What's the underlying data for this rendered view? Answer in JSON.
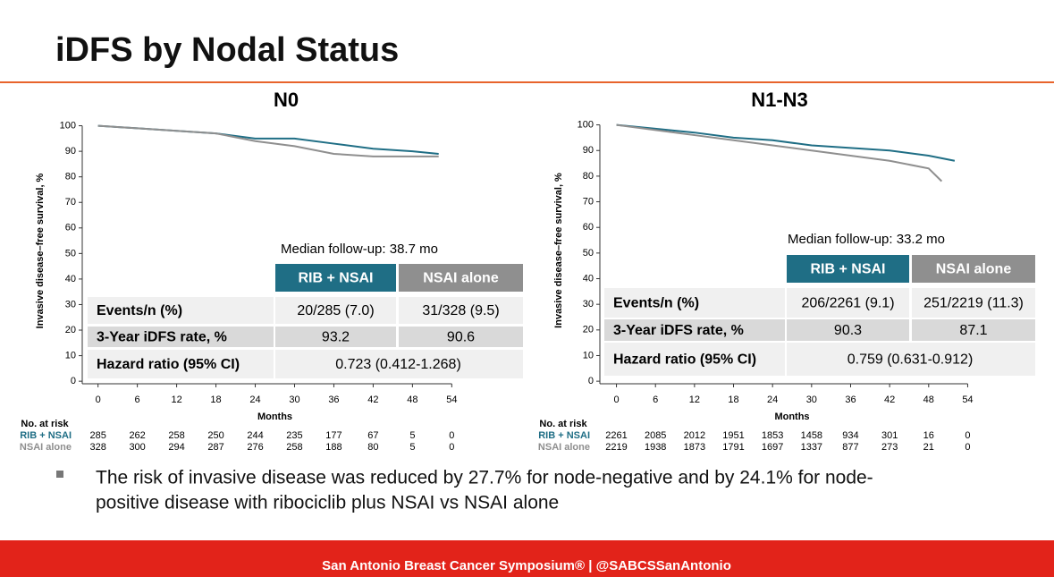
{
  "header": {
    "title": "iDFS by Nodal Status"
  },
  "chart_data": [
    {
      "type": "line",
      "title": "N0",
      "y_label": "Invasive disease–free survival, %",
      "x_label": "Months",
      "x": [
        0,
        6,
        12,
        18,
        24,
        30,
        36,
        42,
        48,
        52
      ],
      "xlim": [
        -2,
        56
      ],
      "xticks": [
        0,
        6,
        12,
        18,
        24,
        30,
        36,
        42,
        48,
        54
      ],
      "ylim": [
        -1,
        103
      ],
      "yticks": [
        0,
        10,
        20,
        30,
        40,
        50,
        60,
        70,
        80,
        90,
        100
      ],
      "series": [
        {
          "name": "RIB + NSAI",
          "color": "#1f6e85",
          "values": [
            100,
            99,
            98,
            97,
            95,
            95,
            93,
            91,
            90,
            89
          ]
        },
        {
          "name": "NSAI alone",
          "color": "#8f8f8f",
          "values": [
            100,
            99,
            98,
            97,
            94,
            92,
            89,
            88,
            88,
            88
          ]
        }
      ],
      "risk_table": {
        "title": "No. at risk",
        "rows": [
          [
            "285",
            "262",
            "258",
            "250",
            "244",
            "235",
            "177",
            "67",
            "5",
            "0"
          ],
          [
            "328",
            "300",
            "294",
            "287",
            "276",
            "258",
            "188",
            "80",
            "5",
            "0"
          ]
        ]
      },
      "summary": {
        "median": "Median follow-up: 38.7 mo",
        "rows": [
          [
            "Events/n (%)",
            "20/285 (7.0)",
            "31/328 (9.5)"
          ],
          [
            "3-Year iDFS rate, %",
            "93.2",
            "90.6"
          ],
          [
            "Hazard ratio (95% CI)",
            "0.723 (0.412-1.268)"
          ]
        ]
      }
    },
    {
      "type": "line",
      "title": "N1-N3",
      "y_label": "Invasive disease–free survival, %",
      "x_label": "Months",
      "x": [
        0,
        6,
        12,
        18,
        24,
        30,
        36,
        42,
        48,
        50,
        52
      ],
      "xlim": [
        -2,
        56
      ],
      "xticks": [
        0,
        6,
        12,
        18,
        24,
        30,
        36,
        42,
        48,
        54
      ],
      "ylim": [
        -1,
        103
      ],
      "yticks": [
        0,
        10,
        20,
        30,
        40,
        50,
        60,
        70,
        80,
        90,
        100
      ],
      "series": [
        {
          "name": "RIB + NSAI",
          "color": "#1f6e85",
          "values": [
            100,
            98.5,
            97,
            95,
            94,
            92,
            91,
            90,
            88,
            87,
            86
          ]
        },
        {
          "name": "NSAI alone",
          "color": "#8f8f8f",
          "values": [
            100,
            98,
            96,
            94,
            92,
            90,
            88,
            86,
            83,
            78,
            null
          ]
        }
      ],
      "risk_table": {
        "title": "No. at risk",
        "rows": [
          [
            "2261",
            "2085",
            "2012",
            "1951",
            "1853",
            "1458",
            "934",
            "301",
            "16",
            "0"
          ],
          [
            "2219",
            "1938",
            "1873",
            "1791",
            "1697",
            "1337",
            "877",
            "273",
            "21",
            "0"
          ]
        ]
      },
      "summary": {
        "median": "Median follow-up: 33.2 mo",
        "rows": [
          [
            "Events/n (%)",
            "206/2261 (9.1)",
            "251/2219 (11.3)"
          ],
          [
            "3-Year iDFS rate, %",
            "90.3",
            "87.1"
          ],
          [
            "Hazard ratio (95% CI)",
            "0.759 (0.631-0.912)"
          ]
        ]
      }
    }
  ],
  "bullet": [
    "The risk of invasive disease was reduced by 27.7% for node-negative and by 24.1% for node-",
    "positive disease with ribociclib plus NSAI vs NSAI alone"
  ],
  "footer": "San Antonio Breast Cancer Symposium® | @SABCSSanAntonio"
}
